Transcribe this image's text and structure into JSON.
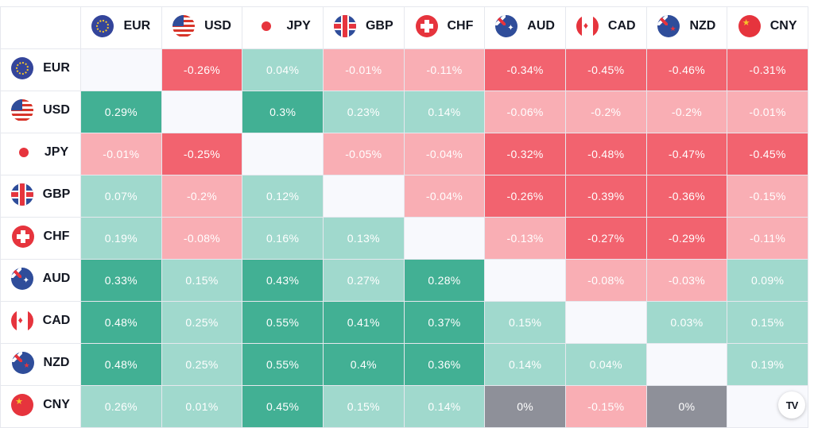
{
  "chart_data": {
    "type": "heatmap",
    "columns": [
      {
        "code": "EUR",
        "flag": "eu-flag-icon"
      },
      {
        "code": "USD",
        "flag": "us-flag-icon"
      },
      {
        "code": "JPY",
        "flag": "japan-flag-icon"
      },
      {
        "code": "GBP",
        "flag": "uk-flag-icon"
      },
      {
        "code": "CHF",
        "flag": "swiss-flag-icon"
      },
      {
        "code": "AUD",
        "flag": "australia-flag-icon"
      },
      {
        "code": "CAD",
        "flag": "canada-flag-icon"
      },
      {
        "code": "NZD",
        "flag": "new-zealand-flag-icon"
      },
      {
        "code": "CNY",
        "flag": "china-flag-icon"
      }
    ],
    "rows": [
      {
        "code": "EUR",
        "values": [
          "",
          "-0.26%",
          "0.04%",
          "-0.01%",
          "-0.11%",
          "-0.34%",
          "-0.45%",
          "-0.46%",
          "-0.31%"
        ],
        "numeric": [
          null,
          -0.26,
          0.04,
          -0.01,
          -0.11,
          -0.34,
          -0.45,
          -0.46,
          -0.31
        ]
      },
      {
        "code": "USD",
        "values": [
          "0.29%",
          "",
          "0.3%",
          "0.23%",
          "0.14%",
          "-0.06%",
          "-0.2%",
          "-0.2%",
          "-0.01%"
        ],
        "numeric": [
          0.29,
          null,
          0.3,
          0.23,
          0.14,
          -0.06,
          -0.2,
          -0.2,
          -0.01
        ]
      },
      {
        "code": "JPY",
        "values": [
          "-0.01%",
          "-0.25%",
          "",
          "-0.05%",
          "-0.04%",
          "-0.32%",
          "-0.48%",
          "-0.47%",
          "-0.45%"
        ],
        "numeric": [
          -0.01,
          -0.25,
          null,
          -0.05,
          -0.04,
          -0.32,
          -0.48,
          -0.47,
          -0.45
        ]
      },
      {
        "code": "GBP",
        "values": [
          "0.07%",
          "-0.2%",
          "0.12%",
          "",
          "-0.04%",
          "-0.26%",
          "-0.39%",
          "-0.36%",
          "-0.15%"
        ],
        "numeric": [
          0.07,
          -0.2,
          0.12,
          null,
          -0.04,
          -0.26,
          -0.39,
          -0.36,
          -0.15
        ]
      },
      {
        "code": "CHF",
        "values": [
          "0.19%",
          "-0.08%",
          "0.16%",
          "0.13%",
          "",
          "-0.13%",
          "-0.27%",
          "-0.29%",
          "-0.11%"
        ],
        "numeric": [
          0.19,
          -0.08,
          0.16,
          0.13,
          null,
          -0.13,
          -0.27,
          -0.29,
          -0.11
        ]
      },
      {
        "code": "AUD",
        "values": [
          "0.33%",
          "0.15%",
          "0.43%",
          "0.27%",
          "0.28%",
          "",
          "-0.08%",
          "-0.03%",
          "0.09%"
        ],
        "numeric": [
          0.33,
          0.15,
          0.43,
          0.27,
          0.28,
          null,
          -0.08,
          -0.03,
          0.09
        ]
      },
      {
        "code": "CAD",
        "values": [
          "0.48%",
          "0.25%",
          "0.55%",
          "0.41%",
          "0.37%",
          "0.15%",
          "",
          "0.03%",
          "0.15%"
        ],
        "numeric": [
          0.48,
          0.25,
          0.55,
          0.41,
          0.37,
          0.15,
          null,
          0.03,
          0.15
        ]
      },
      {
        "code": "NZD",
        "values": [
          "0.48%",
          "0.25%",
          "0.55%",
          "0.4%",
          "0.36%",
          "0.14%",
          "0.04%",
          "",
          "0.19%"
        ],
        "numeric": [
          0.48,
          0.25,
          0.55,
          0.4,
          0.36,
          0.14,
          0.04,
          null,
          0.19
        ]
      },
      {
        "code": "CNY",
        "values": [
          "0.26%",
          "0.01%",
          "0.45%",
          "0.15%",
          "0.14%",
          "0%",
          "-0.15%",
          "0%",
          ""
        ],
        "numeric": [
          0.26,
          0.01,
          0.45,
          0.15,
          0.14,
          0,
          -0.15,
          0,
          null
        ]
      }
    ],
    "colors": {
      "strong_positive": "#42b094",
      "mild_positive": "#a0d9cd",
      "mild_negative": "#f9aeb4",
      "strong_negative": "#f2636f",
      "zero": "#8e9099",
      "diagonal": "#f8f9fd"
    },
    "thresholds": {
      "strong_positive_min": 0.28,
      "strong_negative_max": -0.25
    }
  },
  "logo": {
    "text": "TV",
    "icon": "tradingview-logo-icon"
  }
}
